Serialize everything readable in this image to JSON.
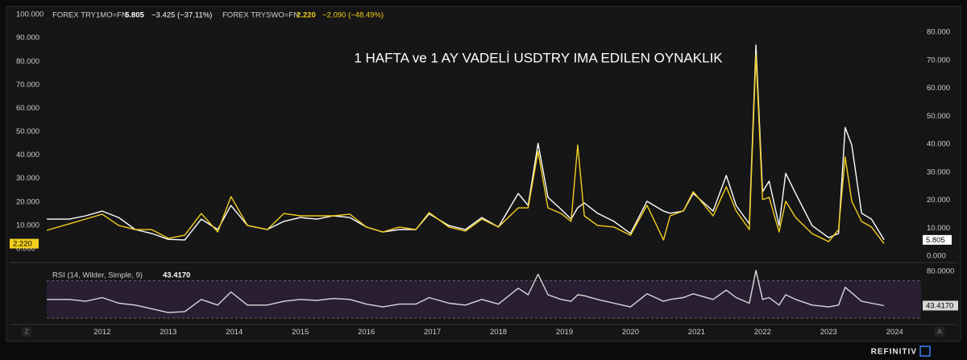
{
  "chart_data": [
    {
      "type": "line",
      "title": "1 HAFTA ve 1 AY VADELİ USDTRY IMA EDILEN OYNAKLIK",
      "x": [
        2011.16,
        2011.5,
        2011.75,
        2012,
        2012.25,
        2012.5,
        2012.75,
        2013,
        2013.25,
        2013.5,
        2013.75,
        2013.95,
        2014.2,
        2014.5,
        2014.75,
        2015,
        2015.25,
        2015.5,
        2015.75,
        2016,
        2016.25,
        2016.5,
        2016.75,
        2016.95,
        2017.25,
        2017.5,
        2017.75,
        2018,
        2018.3,
        2018.45,
        2018.6,
        2018.75,
        2018.95,
        2019.1,
        2019.2,
        2019.3,
        2019.5,
        2019.75,
        2020,
        2020.25,
        2020.5,
        2020.6,
        2020.8,
        2020.95,
        2021.25,
        2021.45,
        2021.6,
        2021.8,
        2021.9,
        2022,
        2022.1,
        2022.25,
        2022.35,
        2022.5,
        2022.75,
        2023,
        2023.15,
        2023.25,
        2023.35,
        2023.5,
        2023.65,
        2023.84
      ],
      "xlim": [
        2011.16,
        2024.4
      ],
      "xticks": [
        2012,
        2013,
        2014,
        2015,
        2016,
        2017,
        2018,
        2019,
        2020,
        2021,
        2022,
        2023,
        2024
      ],
      "ylim": [
        -4.47,
        101.4
      ],
      "yticks": [
        {
          "value": 0,
          "label": "0.000"
        },
        {
          "value": 10,
          "label": "10.000"
        },
        {
          "value": 20,
          "label": "20.000"
        },
        {
          "value": 30,
          "label": "30.000"
        },
        {
          "value": 40,
          "label": "40.000"
        },
        {
          "value": 50,
          "label": "50.000"
        },
        {
          "value": 60,
          "label": "60.000"
        },
        {
          "value": 70,
          "label": "70.000"
        },
        {
          "value": 80,
          "label": "80.000"
        },
        {
          "value": 90,
          "label": "90.000"
        },
        {
          "value": 100,
          "label": "100.000"
        }
      ],
      "y2lim": [
        -1.15,
        87.5
      ],
      "y2ticks": [
        {
          "value": 0,
          "label": "0.000"
        },
        {
          "value": 10,
          "label": "10.000"
        },
        {
          "value": 20,
          "label": "20.000"
        },
        {
          "value": 30,
          "label": "30.000"
        },
        {
          "value": 40,
          "label": "40.000"
        },
        {
          "value": 50,
          "label": "50.000"
        },
        {
          "value": 60,
          "label": "60.000"
        },
        {
          "value": 70,
          "label": "70.000"
        },
        {
          "value": 80,
          "label": "80.000"
        }
      ],
      "grid": false,
      "series": [
        {
          "name": "FOREX TRY1MO=FN",
          "color": "#ffffff",
          "axis": "y2",
          "last_label": "5.805",
          "change": "−3.425 (−37.11%)",
          "values": [
            13.2,
            13.2,
            14.4,
            16.1,
            13.8,
            9.5,
            8.1,
            6,
            5.8,
            13.2,
            9.5,
            18.1,
            10.9,
            9.5,
            12.4,
            13.8,
            13.2,
            14.4,
            13.8,
            10.4,
            8.6,
            9.5,
            9.5,
            15.1,
            10.9,
            9.5,
            13.8,
            10.4,
            22.4,
            18.1,
            40.3,
            21,
            16.7,
            13.2,
            17.3,
            19,
            15.3,
            12.4,
            8.1,
            19.6,
            16.1,
            15.3,
            16.1,
            22.4,
            16.1,
            28.8,
            18.1,
            11.5,
            75.4,
            23,
            26.8,
            10.9,
            29.6,
            22.4,
            10.9,
            6.6,
            8.1,
            46,
            39.7,
            15.3,
            13.2,
            5.805
          ]
        },
        {
          "name": "FOREX TRYSWO=FN",
          "color": "#f2cf1d",
          "axis": "y",
          "last_label": "2.220",
          "change": "−2.090 (−48.49%)",
          "values": [
            7.9,
            10.7,
            12.7,
            14.8,
            10,
            8.2,
            8.2,
            4.5,
            5.8,
            15.1,
            7.2,
            22.3,
            10,
            8.2,
            15.1,
            14.1,
            14.1,
            14.1,
            14.8,
            9.3,
            7.2,
            9.3,
            8.2,
            15.5,
            9.3,
            7.6,
            12.7,
            9.3,
            17.5,
            17.5,
            41.6,
            17.5,
            15.1,
            11.7,
            44.3,
            14.1,
            10,
            9.3,
            5.8,
            18.6,
            3.8,
            14.1,
            16.2,
            24.4,
            14.1,
            26.5,
            16.2,
            8.2,
            82.8,
            21,
            22,
            7.2,
            20.3,
            13.4,
            6.5,
            3.1,
            8.2,
            39.2,
            20.3,
            11.7,
            9.3,
            2.22
          ]
        }
      ]
    },
    {
      "type": "line",
      "title": "RSI (14, Wilder, Simple, 9)",
      "x": [
        2011.16,
        2011.5,
        2011.75,
        2012,
        2012.25,
        2012.5,
        2012.75,
        2013,
        2013.25,
        2013.5,
        2013.75,
        2013.95,
        2014.2,
        2014.5,
        2014.75,
        2015,
        2015.25,
        2015.5,
        2015.75,
        2016,
        2016.25,
        2016.5,
        2016.75,
        2016.95,
        2017.25,
        2017.5,
        2017.75,
        2018,
        2018.3,
        2018.45,
        2018.6,
        2018.75,
        2018.95,
        2019.1,
        2019.2,
        2019.3,
        2019.5,
        2019.75,
        2020,
        2020.25,
        2020.5,
        2020.6,
        2020.8,
        2020.95,
        2021.25,
        2021.45,
        2021.6,
        2021.8,
        2021.9,
        2022,
        2022.1,
        2022.25,
        2022.35,
        2022.5,
        2022.75,
        2023,
        2023.15,
        2023.25,
        2023.35,
        2023.5,
        2023.65,
        2023.84
      ],
      "xlim": [
        2011.16,
        2024.4
      ],
      "ylim": [
        24,
        86
      ],
      "yticks": [
        {
          "value": 80,
          "label": "80.0000"
        }
      ],
      "bands": [
        30,
        70
      ],
      "series": [
        {
          "color": "#d8d8d8",
          "last_label": "43.4170",
          "values": [
            50,
            50,
            48,
            52,
            46,
            44,
            40,
            36,
            37,
            50,
            44,
            58,
            44,
            44,
            48,
            50,
            49,
            51,
            50,
            45,
            42,
            45,
            45,
            52,
            46,
            44,
            50,
            45,
            62,
            55,
            77,
            55,
            50,
            48,
            55,
            54,
            50,
            46,
            42,
            56,
            48,
            50,
            52,
            56,
            50,
            60,
            52,
            46,
            81,
            50,
            52,
            44,
            55,
            50,
            44,
            42,
            44,
            63,
            57,
            48,
            46,
            43.417
          ]
        }
      ]
    }
  ],
  "buttons": [
    "Z",
    "A"
  ],
  "brand": "REFINITIV"
}
